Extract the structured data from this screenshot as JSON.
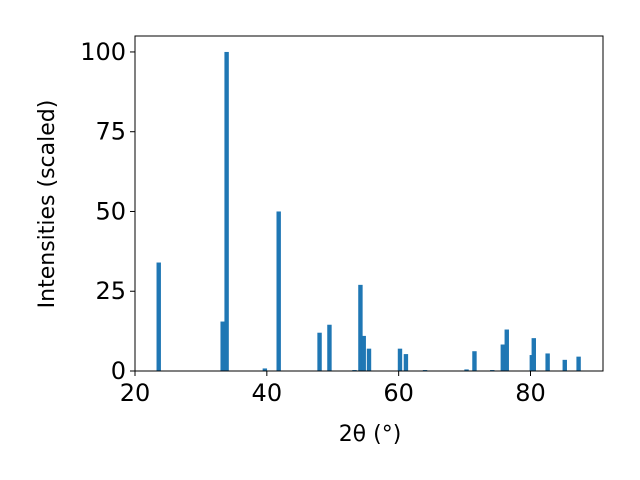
{
  "chart_data": {
    "type": "bar",
    "x": [
      23.6,
      33.3,
      33.9,
      39.7,
      41.8,
      48.0,
      49.5,
      53.3,
      54.2,
      54.7,
      55.5,
      60.2,
      61.1,
      64.0,
      70.3,
      71.5,
      74.2,
      75.8,
      76.4,
      80.2,
      80.5,
      82.6,
      85.2,
      87.3
    ],
    "values": [
      34,
      15.5,
      100,
      0.8,
      50,
      12,
      14.5,
      0.3,
      27,
      11,
      7,
      7,
      5.3,
      0.3,
      0.5,
      6.2,
      0.3,
      8.3,
      13,
      5,
      10.3,
      5.5,
      3.5,
      4.5
    ],
    "color": "#1f77b4",
    "xlabel": "2θ (°)",
    "ylabel": "Intensities (scaled)",
    "xlim": [
      20,
      91
    ],
    "ylim": [
      0,
      105
    ],
    "xticks": [
      20,
      40,
      60,
      80
    ],
    "yticks": [
      0,
      25,
      50,
      75,
      100
    ]
  }
}
